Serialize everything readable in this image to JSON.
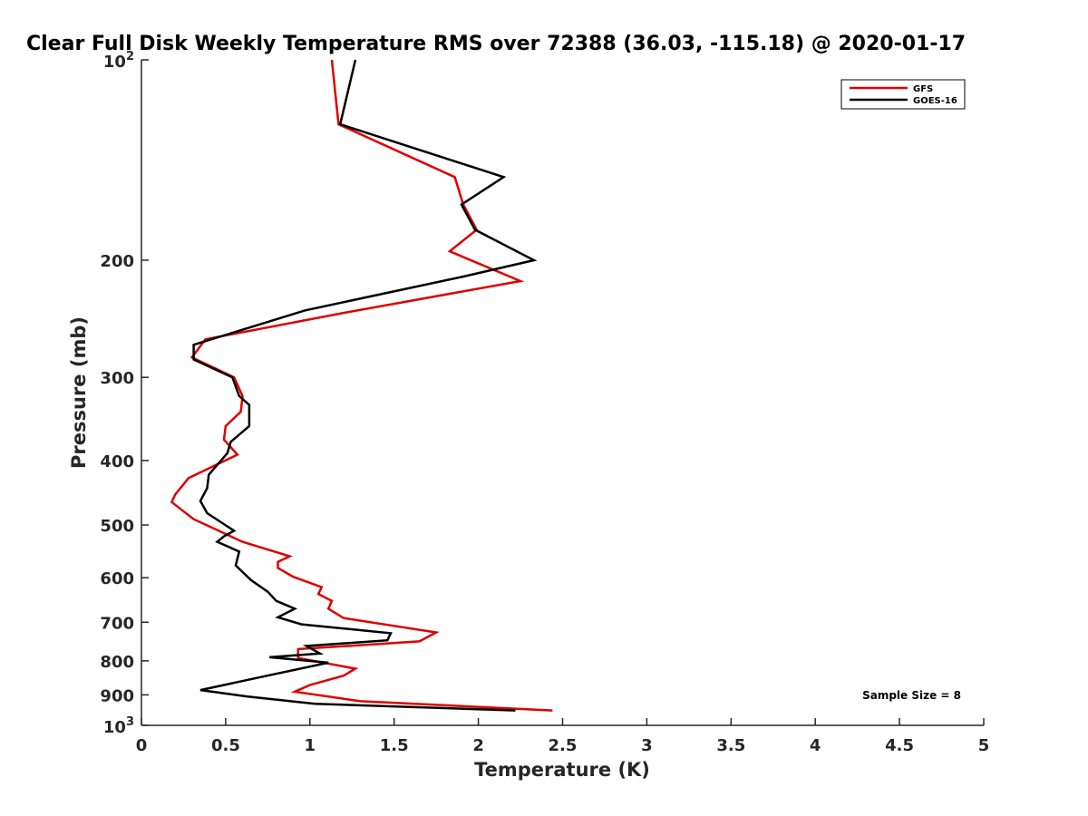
{
  "chart_data": {
    "type": "line",
    "title": "Clear Full Disk Weekly Temperature RMS over 72388 (36.03, -115.18) @ 2020-01-17",
    "xlabel": "Temperature (K)",
    "ylabel": "Pressure (mb)",
    "xlim": [
      0,
      5
    ],
    "ylim": [
      1000,
      100
    ],
    "y_scale": "log",
    "y_direction": "reversed",
    "grid": false,
    "legend_position": "top-right",
    "x_ticks": [
      "0",
      "0.5",
      "1",
      "1.5",
      "2",
      "2.5",
      "3",
      "3.5",
      "4",
      "4.5",
      "5"
    ],
    "x_tick_values": [
      0,
      0.5,
      1,
      1.5,
      2,
      2.5,
      3,
      3.5,
      4,
      4.5,
      5
    ],
    "y_ticks": [
      {
        "value": 100,
        "base": "10",
        "exp": "2"
      },
      {
        "value": 200,
        "label": "200"
      },
      {
        "value": 300,
        "label": "300"
      },
      {
        "value": 400,
        "label": "400"
      },
      {
        "value": 500,
        "label": "500"
      },
      {
        "value": 600,
        "label": "600"
      },
      {
        "value": 700,
        "label": "700"
      },
      {
        "value": 800,
        "label": "800"
      },
      {
        "value": 900,
        "label": "900"
      },
      {
        "value": 1000,
        "base": "10",
        "exp": "3"
      }
    ],
    "annotation": "Sample Size = 8",
    "series": [
      {
        "name": "GFS",
        "color": "#dd0000",
        "points": [
          [
            1.13,
            100
          ],
          [
            1.17,
            125
          ],
          [
            1.86,
            150
          ],
          [
            1.91,
            165
          ],
          [
            1.99,
            180
          ],
          [
            1.83,
            194
          ],
          [
            2.25,
            215
          ],
          [
            1.2,
            240
          ],
          [
            0.38,
            263
          ],
          [
            0.3,
            280
          ],
          [
            0.55,
            300
          ],
          [
            0.6,
            320
          ],
          [
            0.59,
            338
          ],
          [
            0.5,
            355
          ],
          [
            0.49,
            372
          ],
          [
            0.57,
            392
          ],
          [
            0.28,
            425
          ],
          [
            0.2,
            450
          ],
          [
            0.18,
            462
          ],
          [
            0.31,
            490
          ],
          [
            0.6,
            530
          ],
          [
            0.88,
            557
          ],
          [
            0.81,
            568
          ],
          [
            0.81,
            580
          ],
          [
            0.9,
            598
          ],
          [
            1.07,
            620
          ],
          [
            1.05,
            635
          ],
          [
            1.13,
            650
          ],
          [
            1.11,
            668
          ],
          [
            1.2,
            690
          ],
          [
            1.75,
            725
          ],
          [
            1.65,
            748
          ],
          [
            0.93,
            768
          ],
          [
            0.93,
            792
          ],
          [
            1.27,
            822
          ],
          [
            1.2,
            842
          ],
          [
            1.0,
            870
          ],
          [
            0.91,
            890
          ],
          [
            1.3,
            920
          ],
          [
            2.44,
            950
          ]
        ]
      },
      {
        "name": "GOES-16",
        "color": "#000000",
        "points": [
          [
            1.27,
            100
          ],
          [
            1.18,
            125
          ],
          [
            2.15,
            150
          ],
          [
            1.9,
            165
          ],
          [
            1.98,
            180
          ],
          [
            2.33,
            200
          ],
          [
            1.9,
            212
          ],
          [
            0.97,
            238
          ],
          [
            0.31,
            268
          ],
          [
            0.31,
            282
          ],
          [
            0.54,
            300
          ],
          [
            0.58,
            320
          ],
          [
            0.64,
            330
          ],
          [
            0.64,
            355
          ],
          [
            0.53,
            375
          ],
          [
            0.51,
            390
          ],
          [
            0.4,
            420
          ],
          [
            0.39,
            440
          ],
          [
            0.35,
            460
          ],
          [
            0.39,
            480
          ],
          [
            0.55,
            510
          ],
          [
            0.49,
            520
          ],
          [
            0.45,
            530
          ],
          [
            0.58,
            548
          ],
          [
            0.56,
            575
          ],
          [
            0.65,
            605
          ],
          [
            0.75,
            630
          ],
          [
            0.8,
            650
          ],
          [
            0.91,
            668
          ],
          [
            0.81,
            688
          ],
          [
            0.95,
            705
          ],
          [
            1.48,
            727
          ],
          [
            1.46,
            745
          ],
          [
            0.98,
            760
          ],
          [
            1.06,
            780
          ],
          [
            0.76,
            790
          ],
          [
            1.11,
            805
          ],
          [
            0.72,
            845
          ],
          [
            0.35,
            885
          ],
          [
            0.63,
            905
          ],
          [
            1.03,
            928
          ],
          [
            2.22,
            950
          ]
        ]
      }
    ]
  }
}
